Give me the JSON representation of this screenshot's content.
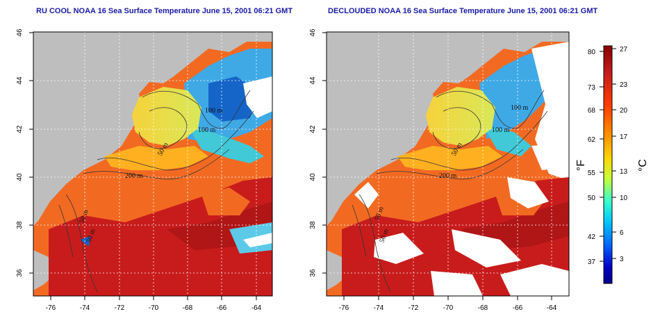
{
  "panels": [
    {
      "title": "RU COOL NOAA 16 Sea Surface Temperature June 15, 2001 06:21 GMT",
      "clouds": true
    },
    {
      "title": "DECLOUDED NOAA 16 Sea Surface Temperature June 15, 2001 06:21 GMT",
      "clouds": false
    }
  ],
  "axes": {
    "lon_ticks": [
      "-76",
      "-74",
      "-72",
      "-70",
      "-68",
      "-66",
      "-64"
    ],
    "lat_ticks": [
      "36",
      "38",
      "40",
      "42",
      "44",
      "46"
    ]
  },
  "contour_labels": [
    "100 m",
    "100 m",
    "50 m",
    "200 m",
    "50 m",
    "50 m"
  ],
  "colorbar": {
    "celsius_ticks": [
      "27",
      "23",
      "20",
      "17",
      "13",
      "10",
      "6",
      "3"
    ],
    "fahrenheit_ticks": [
      "80",
      "73",
      "68",
      "62",
      "55",
      "50",
      "42",
      "37"
    ],
    "unit_fahrenheit": "°F",
    "unit_celsius": "°C",
    "colors": [
      "#8b0000",
      "#c81e1e",
      "#ff3d00",
      "#ff8c00",
      "#ffd400",
      "#c8ff3c",
      "#3cffc8",
      "#00c8ff",
      "#0064ff",
      "#0000c8",
      "#00008b"
    ]
  },
  "colors": {
    "land": "#bebebe",
    "title": "#1a1aa6",
    "warm": "#f26a22",
    "hot": "#c81c1c",
    "shelf": "#f7d23a"
  }
}
